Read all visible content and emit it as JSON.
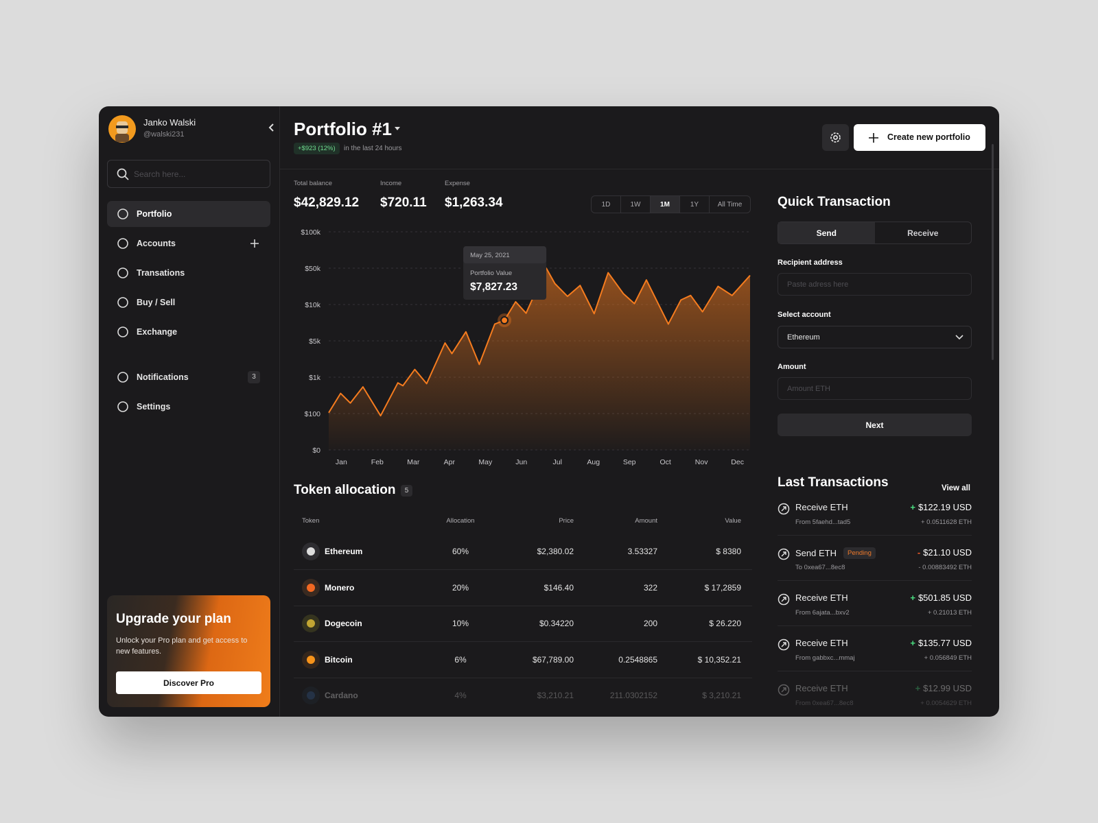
{
  "sidebar": {
    "user": {
      "name": "Janko Walski",
      "handle": "@walski231"
    },
    "search_placeholder": "Search here...",
    "nav": [
      {
        "label": "Portfolio"
      },
      {
        "label": "Accounts"
      },
      {
        "label": "Transations"
      },
      {
        "label": "Buy / Sell"
      },
      {
        "label": "Exchange"
      },
      {
        "label": "Notifications",
        "badge": 3
      },
      {
        "label": "Settings"
      }
    ],
    "upgrade": {
      "title": "Upgrade your plan",
      "text": "Unlock your Pro plan and get access to new features.",
      "button": "Discover Pro"
    }
  },
  "header": {
    "title": "Portfolio #1",
    "change": "+$923 (12%)",
    "change_note": "in the last 24 hours",
    "button": "Create new portfolio"
  },
  "stats": [
    {
      "label": "Total balance",
      "value": "$42,829.12"
    },
    {
      "label": "Income",
      "value": "$720.11"
    },
    {
      "label": "Expense",
      "value": "$1,263.34"
    }
  ],
  "ranges": [
    "1D",
    "1W",
    "1M",
    "1Y",
    "All Time"
  ],
  "chart_data": {
    "type": "area",
    "color": "#f57c1f",
    "grid": true,
    "x": [
      -0.35,
      -0.02,
      0.25,
      0.6,
      1.09,
      1.57,
      1.71,
      2.04,
      2.37,
      2.88,
      3.07,
      3.46,
      3.83,
      4.26,
      4.53,
      4.84,
      5.13,
      5.69,
      5.93,
      6.28,
      6.63,
      7.02,
      7.41,
      7.83,
      8.14,
      8.47,
      9.08,
      9.43,
      9.7,
      10.03,
      10.46,
      10.85,
      11.35
    ],
    "values": [
      120,
      600,
      360,
      760,
      94,
      860,
      790,
      1850,
      840,
      4770,
      3600,
      6250,
      2400,
      7300,
      7827.23,
      13000,
      8800,
      50000,
      33000,
      19000,
      31000,
      8750,
      45000,
      22000,
      11000,
      37000,
      7300,
      15000,
      20000,
      9000,
      30000,
      20000,
      42000
    ],
    "xlim": [
      -0.35,
      11.35
    ],
    "xticks": [
      {
        "value": 0,
        "label": "Jan"
      },
      {
        "value": 1,
        "label": "Feb"
      },
      {
        "value": 2,
        "label": "Mar"
      },
      {
        "value": 3,
        "label": "Apr"
      },
      {
        "value": 4,
        "label": "May"
      },
      {
        "value": 5,
        "label": "Jun"
      },
      {
        "value": 6,
        "label": "Jul"
      },
      {
        "value": 7,
        "label": "Aug"
      },
      {
        "value": 8,
        "label": "Sep"
      },
      {
        "value": 9,
        "label": "Oct"
      },
      {
        "value": 10,
        "label": "Nov"
      },
      {
        "value": 11,
        "label": "Dec"
      }
    ],
    "ylim": [
      0,
      100000
    ],
    "yticks": [
      {
        "value": 0,
        "label": "$0"
      },
      {
        "value": 100,
        "label": "$100"
      },
      {
        "value": 1000,
        "label": "$1k"
      },
      {
        "value": 5000,
        "label": "$5k"
      },
      {
        "value": 10000,
        "label": "$10k"
      },
      {
        "value": 50000,
        "label": "$50k"
      },
      {
        "value": 100000,
        "label": "$100k"
      }
    ],
    "tooltip": {
      "date": "May 25, 2021",
      "label": "Portfolio Value",
      "x": 4.53,
      "value": 7827.23,
      "value_label": "$7,827.23"
    }
  },
  "tokens": {
    "title": "Token allocation",
    "count": 5,
    "columns": [
      "Token",
      "Allocation",
      "Price",
      "Amount",
      "Value"
    ],
    "rows": [
      [
        "Ethereum",
        "60%",
        "$2,380.02",
        "3.53327",
        "$ 8380"
      ],
      [
        "Monero",
        "20%",
        "$146.40",
        "322",
        "$ 17,2859"
      ],
      [
        "Dogecoin",
        "10%",
        "$0.34220",
        "200",
        "$ 26.220"
      ],
      [
        "Bitcoin",
        "6%",
        "$67,789.00",
        "0.2548865",
        "$ 10,352.21"
      ],
      [
        "Cardano",
        "4%",
        "$3,210.21",
        "211.0302152",
        "$ 3,210.21"
      ]
    ]
  },
  "quick_transaction": {
    "title": "Quick Transaction",
    "tabs": [
      "Send",
      "Receive"
    ],
    "fields": [
      {
        "label": "Recipient address",
        "placeholder": "Paste adress here"
      },
      {
        "label": "Select account",
        "value": "Ethereum"
      },
      {
        "label": "Amount",
        "placeholder": "Amount ETH"
      }
    ],
    "button": "Next"
  },
  "last_transactions": {
    "title": "Last Transactions",
    "link": "View all",
    "items": [
      {
        "title": "Receive ETH",
        "sign": "+",
        "amount": "$122.19 USD",
        "detail": "From 5faehd...tad5",
        "eth": "+ 0.0511628 ETH"
      },
      {
        "title": "Send ETH",
        "status": "Pending",
        "sign": "-",
        "amount": "$21.10 USD",
        "detail": "To 0xea67...8ec8",
        "eth": "- 0.00883492 ETH"
      },
      {
        "title": "Receive ETH",
        "sign": "+",
        "amount": "$501.85 USD",
        "detail": "From 6ajata...bxv2",
        "eth": "+ 0.21013 ETH"
      },
      {
        "title": "Receive ETH",
        "sign": "+",
        "amount": "$135.77 USD",
        "detail": "From gabbxc...mmaj",
        "eth": "+ 0.056849 ETH"
      },
      {
        "title": "Receive ETH",
        "sign": "+",
        "amount": "$12.99 USD",
        "detail": "From 0xea67...8ec8",
        "eth": "+ 0.0054629 ETH"
      }
    ]
  }
}
